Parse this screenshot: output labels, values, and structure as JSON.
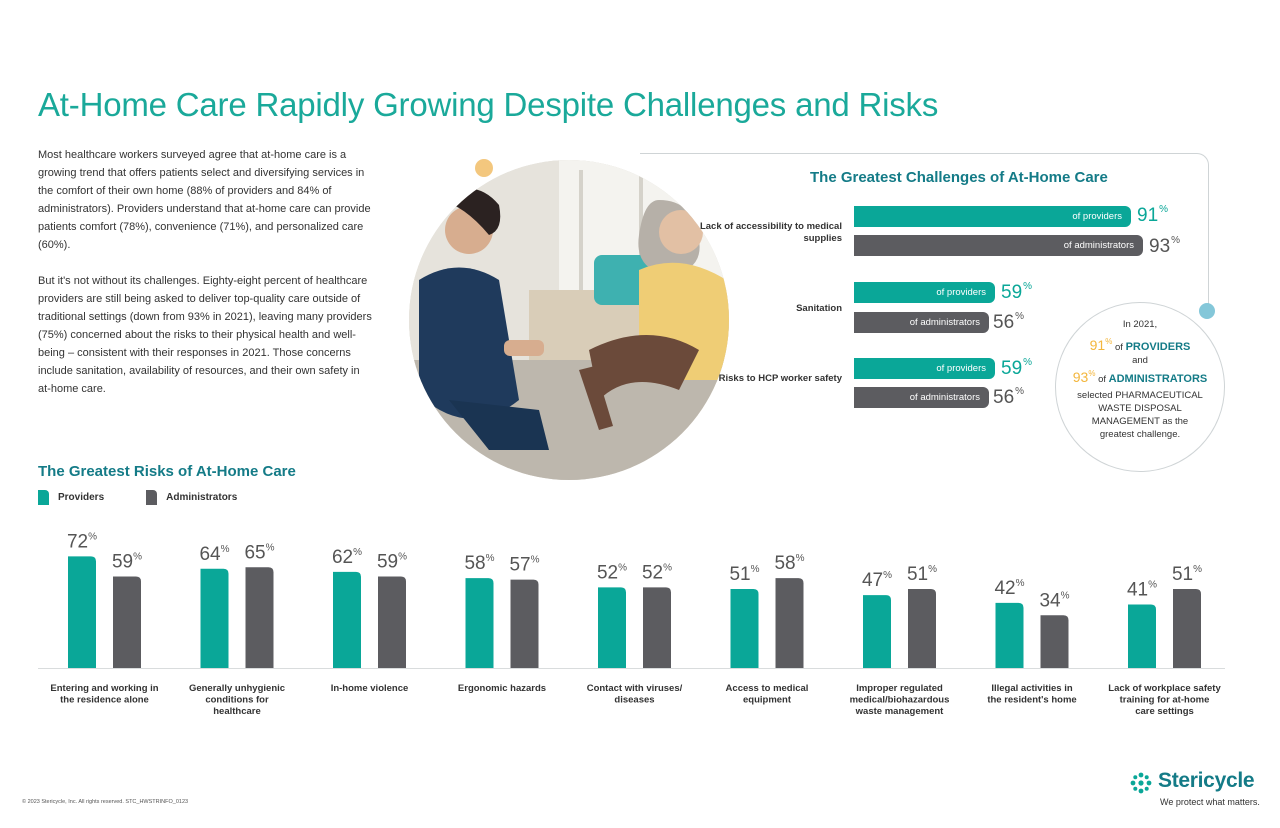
{
  "title": "At-Home Care Rapidly Growing Despite Challenges and Risks",
  "intro": {
    "p1": "Most healthcare workers surveyed agree that at-home care is a growing trend that offers patients select and diversifying services in the comfort of their own home (88% of providers and 84% of administrators). Providers understand that at-home care can provide patients comfort (78%), convenience (71%), and personalized care (60%).",
    "p2": "But it's not without its challenges. Eighty-eight percent of healthcare providers are still being asked to deliver top-quality care outside of traditional settings (down from 93% in 2021), leaving many providers (75%) concerned about the risks to their physical health and well-being – consistent with their responses in 2021. Those concerns include sanitation, availability of resources, and their own safety in at-home care."
  },
  "photo_icon": "caregiver-with-elderly-patient-photo",
  "colors": {
    "provider": "#0aa798",
    "administrator": "#5c5c60",
    "heading": "#147b87",
    "title": "#1aa99a",
    "accent": "#f3b63d"
  },
  "challenges": {
    "title": "The Greatest Challenges of At-Home Care",
    "provider_label": "of providers",
    "admin_label": "of administrators",
    "percent_sign": "%",
    "items": [
      {
        "label": "Lack of accessibility to medical supplies",
        "providers": 91,
        "administrators": 93
      },
      {
        "label": "Sanitation",
        "providers": 59,
        "administrators": 56
      },
      {
        "label": "Risks to HCP worker safety",
        "providers": 59,
        "administrators": 56
      }
    ]
  },
  "callout": {
    "year_line": "In 2021,",
    "prov_value": "91",
    "prov_label": "PROVIDERS",
    "of": "of",
    "and": "and",
    "admin_value": "93",
    "admin_label": "ADMINISTRATORS",
    "percent_sign": "%",
    "text": "selected PHARMACEUTICAL WASTE DISPOSAL MANAGEMENT as the greatest challenge."
  },
  "risks": {
    "title": "The Greatest Risks of At-Home Care",
    "legend": {
      "providers": "Providers",
      "administrators": "Administrators"
    }
  },
  "chart_data": {
    "type": "bar",
    "title": "The Greatest Risks of At-Home Care",
    "categories": [
      "Entering and working in the residence alone",
      "Generally unhygienic conditions for healthcare",
      "In-home violence",
      "Ergonomic hazards",
      "Contact with viruses/ diseases",
      "Access to medical equipment",
      "Improper regulated medical/biohazardous waste management",
      "Illegal activities in the resident's home",
      "Lack of workplace safety training for at-home care settings"
    ],
    "series": [
      {
        "name": "Providers",
        "values": [
          72,
          64,
          62,
          58,
          52,
          51,
          47,
          42,
          41
        ]
      },
      {
        "name": "Administrators",
        "values": [
          59,
          65,
          59,
          57,
          52,
          58,
          51,
          34,
          51
        ]
      }
    ],
    "unit": "%",
    "ylim": [
      0,
      80
    ],
    "legend": "top-left",
    "grid": false
  },
  "footer": "© 2023 Stericycle, Inc. All rights reserved.   STC_HWSTRINFO_0123",
  "brand": {
    "name": "Stericycle",
    "tagline": "We protect what matters.",
    "icon": "stericycle-logo-icon"
  }
}
